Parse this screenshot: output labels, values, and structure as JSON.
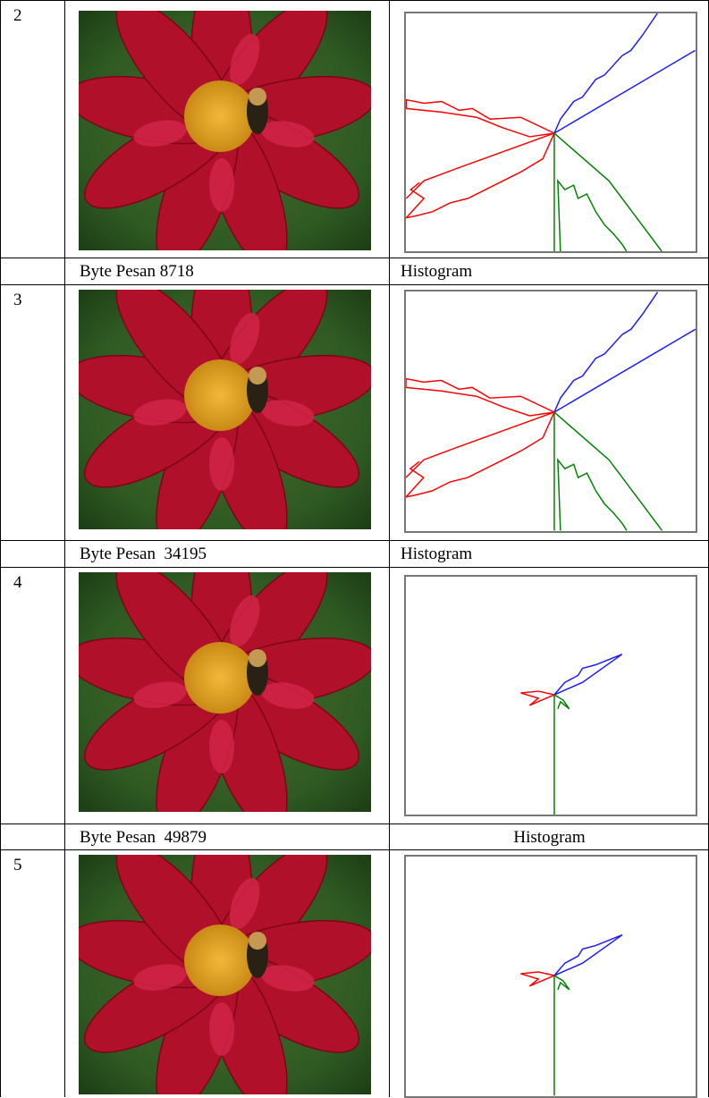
{
  "table": {
    "entries": [
      {
        "number": "2",
        "caption": "Byte Pesan 8718",
        "histogram_label": "Histogram"
      },
      {
        "number": "3",
        "caption": "Byte Pesan  34195",
        "histogram_label": "Histogram"
      },
      {
        "number": "4",
        "caption": "Byte Pesan  49879",
        "histogram_label": "Histogram"
      },
      {
        "number": "5"
      }
    ]
  }
}
